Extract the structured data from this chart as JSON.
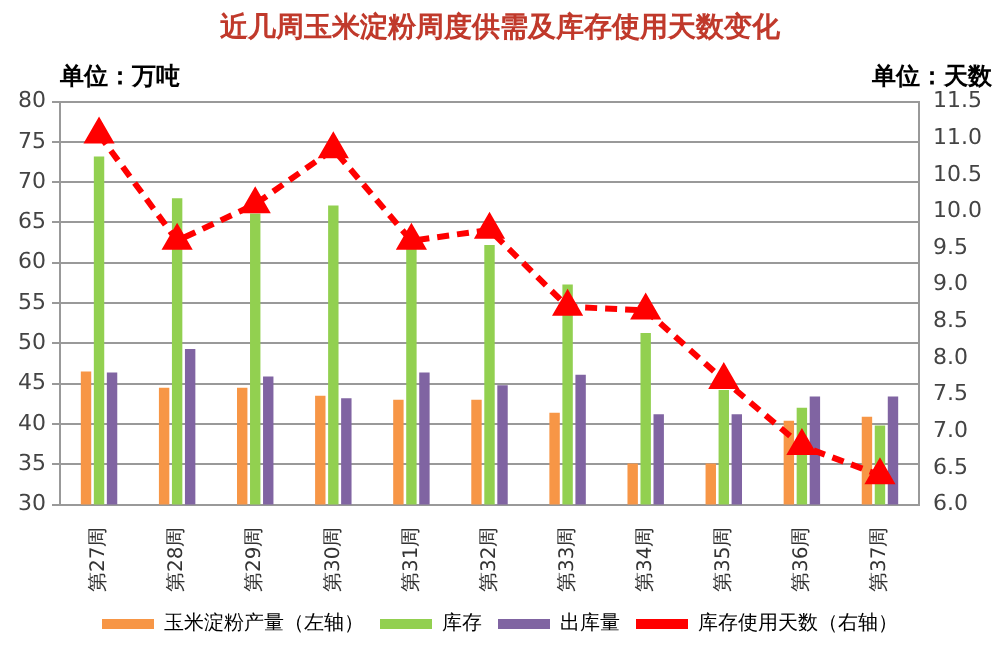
{
  "chart_data": {
    "type": "bar",
    "title": "近几周玉米淀粉周度供需及库存使用天数变化",
    "ylabel": "单位：万吨",
    "y2label": "单位：天数",
    "categories": [
      "第27周",
      "第28周",
      "第29周",
      "第30周",
      "第31周",
      "第32周",
      "第33周",
      "第34周",
      "第35周",
      "第36周",
      "第37周"
    ],
    "series": [
      {
        "name": "玉米淀粉产量（左轴）",
        "color": "#f79646",
        "values": [
          46.5,
          44.5,
          44.5,
          43.5,
          43,
          43,
          41.4,
          35.1,
          35.1,
          40.4,
          40.9
        ]
      },
      {
        "name": "库存",
        "color": "#92d050",
        "values": [
          73.2,
          68,
          66.1,
          67.1,
          61.7,
          62.2,
          57.3,
          51.3,
          44.2,
          42,
          39.8
        ]
      },
      {
        "name": "出库量",
        "color": "#8064a2",
        "values": [
          46.4,
          49.3,
          45.9,
          43.2,
          46.4,
          44.8,
          46.1,
          41.2,
          41.2,
          43.4,
          43.4
        ]
      },
      {
        "name": "库存使用天数（右轴）",
        "color": "#ff0000",
        "type": "line",
        "axis": "y2",
        "marker": "triangle",
        "line_style": "dashed",
        "values": [
          11.05,
          9.6,
          10.1,
          10.85,
          9.6,
          9.75,
          8.7,
          8.65,
          7.7,
          6.8,
          6.4
        ]
      }
    ],
    "ylim": [
      30,
      80
    ],
    "yticks": [
      30,
      35,
      40,
      45,
      50,
      55,
      60,
      65,
      70,
      75,
      80
    ],
    "y2lim": [
      6,
      11.5
    ],
    "y2ticks": [
      {
        "value": 6,
        "label": "6.0"
      },
      {
        "value": 6.5,
        "label": "6.5"
      },
      {
        "value": 7,
        "label": "7.0"
      },
      {
        "value": 7.5,
        "label": "7.5"
      },
      {
        "value": 8,
        "label": "8.0"
      },
      {
        "value": 8.5,
        "label": "8.5"
      },
      {
        "value": 9,
        "label": "9.0"
      },
      {
        "value": 9.5,
        "label": "9.5"
      },
      {
        "value": 10,
        "label": "10.0"
      },
      {
        "value": 10.5,
        "label": "10.5"
      },
      {
        "value": 11,
        "label": "11.0"
      },
      {
        "value": 11.5,
        "label": "11.5"
      }
    ],
    "grid": "y",
    "legend": "bottom"
  }
}
